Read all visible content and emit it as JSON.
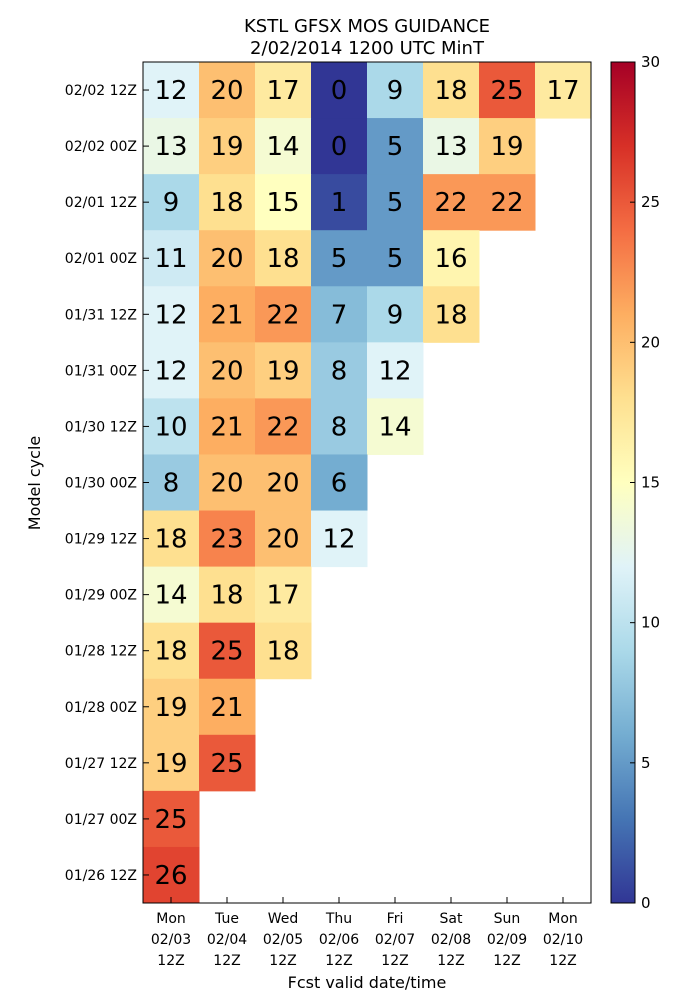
{
  "chart_data": {
    "type": "heatmap",
    "title_line1": "KSTL GFSX MOS GUIDANCE",
    "title_line2": "2/02/2014 1200 UTC MinT",
    "xlabel": "Fcst valid date/time",
    "ylabel": "Model cycle",
    "x_ticks": [
      [
        "Mon",
        "02/03",
        "12Z"
      ],
      [
        "Tue",
        "02/04",
        "12Z"
      ],
      [
        "Wed",
        "02/05",
        "12Z"
      ],
      [
        "Thu",
        "02/06",
        "12Z"
      ],
      [
        "Fri",
        "02/07",
        "12Z"
      ],
      [
        "Sat",
        "02/08",
        "12Z"
      ],
      [
        "Sun",
        "02/09",
        "12Z"
      ],
      [
        "Mon",
        "02/10",
        "12Z"
      ]
    ],
    "y_ticks": [
      "02/02 12Z",
      "02/02 00Z",
      "02/01 12Z",
      "02/01 00Z",
      "01/31 12Z",
      "01/31 00Z",
      "01/30 12Z",
      "01/30 00Z",
      "01/29 12Z",
      "01/29 00Z",
      "01/28 12Z",
      "01/28 00Z",
      "01/27 12Z",
      "01/27 00Z",
      "01/26 12Z"
    ],
    "values": [
      [
        12,
        20,
        17,
        0,
        9,
        18,
        25,
        17
      ],
      [
        13,
        19,
        14,
        0,
        5,
        13,
        19,
        null
      ],
      [
        9,
        18,
        15,
        1,
        5,
        22,
        22,
        null
      ],
      [
        11,
        20,
        18,
        5,
        5,
        16,
        null,
        null
      ],
      [
        12,
        21,
        22,
        7,
        9,
        18,
        null,
        null
      ],
      [
        12,
        20,
        19,
        8,
        12,
        null,
        null,
        null
      ],
      [
        10,
        21,
        22,
        8,
        14,
        null,
        null,
        null
      ],
      [
        8,
        20,
        20,
        6,
        null,
        null,
        null,
        null
      ],
      [
        18,
        23,
        20,
        12,
        null,
        null,
        null,
        null
      ],
      [
        14,
        18,
        17,
        null,
        null,
        null,
        null,
        null
      ],
      [
        18,
        25,
        18,
        null,
        null,
        null,
        null,
        null
      ],
      [
        19,
        21,
        null,
        null,
        null,
        null,
        null,
        null
      ],
      [
        19,
        25,
        null,
        null,
        null,
        null,
        null,
        null
      ],
      [
        25,
        null,
        null,
        null,
        null,
        null,
        null,
        null
      ],
      [
        26,
        null,
        null,
        null,
        null,
        null,
        null,
        null
      ]
    ],
    "colorbar": {
      "min": 0,
      "max": 30,
      "ticks": [
        "0",
        "5",
        "10",
        "15",
        "20",
        "25",
        "30"
      ],
      "colormap": "RdYlBu_r"
    },
    "grid": false
  }
}
